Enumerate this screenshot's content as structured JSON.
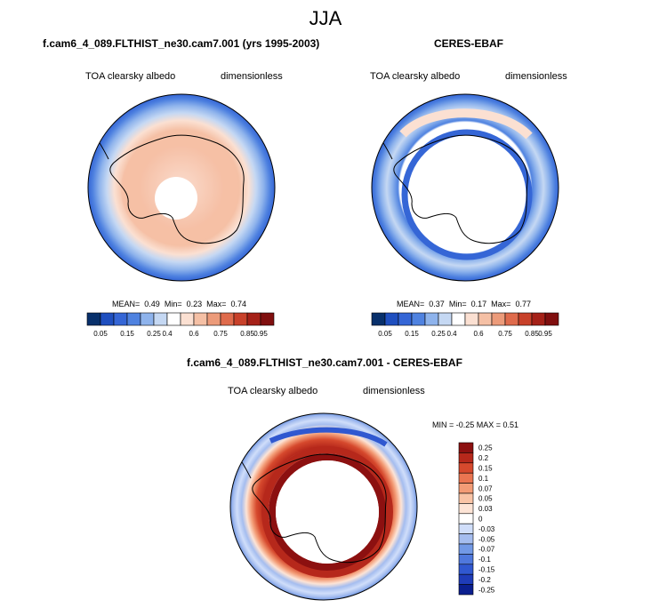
{
  "season": "JJA",
  "panels": [
    {
      "title": "f.cam6_4_089.FLTHIST_ne30.cam7.001 (yrs 1995-2003)",
      "variable_label": "TOA clearsky albedo",
      "units_label": "dimensionless",
      "stats": {
        "mean_label": "MEAN=",
        "mean": "0.49",
        "min_label": "Min=",
        "min": "0.23",
        "max_label": "Max=",
        "max": "0.74"
      }
    },
    {
      "title": "CERES-EBAF",
      "variable_label": "TOA clearsky albedo",
      "units_label": "dimensionless",
      "stats": {
        "mean_label": "MEAN=",
        "mean": "0.37",
        "min_label": "Min=",
        "min": "0.17",
        "max_label": "Max=",
        "max": "0.77"
      }
    },
    {
      "title": "f.cam6_4_089.FLTHIST_ne30.cam7.001 - CERES-EBAF",
      "variable_label": "TOA clearsky albedo",
      "units_label": "dimensionless",
      "stats_text": "MIN = -0.25 MAX = 0.51"
    }
  ],
  "colors": {
    "coastline": "#000000",
    "no_data": "#ffffff",
    "abs_palette": [
      "#08306b",
      "#1f4fbf",
      "#3566d6",
      "#4f82e0",
      "#8eb3ec",
      "#c5d8f3",
      "#ffffff",
      "#fbe0d2",
      "#f5c0a5",
      "#ec9b7a",
      "#df6b4c",
      "#c8412a",
      "#a52118",
      "#800f0f"
    ],
    "diff_palette": [
      "#0b1f8f",
      "#1f3cb8",
      "#3058d0",
      "#4f78dd",
      "#7299e6",
      "#a5bdef",
      "#d0defa",
      "#ffffff",
      "#fde4d6",
      "#f9c4a6",
      "#f39c76",
      "#ea7551",
      "#d6492d",
      "#b6281b",
      "#8c1010"
    ]
  },
  "chart_data": [
    {
      "type": "heatmap",
      "projection": "south-polar-stereographic",
      "title": "f.cam6_4_089.FLTHIST_ne30.cam7.001 (yrs 1995-2003)",
      "colorbar_ticks": [
        "0.05",
        "0.15",
        "0.25",
        "0.4",
        "0.6",
        "0.75",
        "0.85",
        "0.95"
      ],
      "colorbar_orientation": "horizontal",
      "value_range": [
        0.23,
        0.74
      ],
      "mean": 0.49
    },
    {
      "type": "heatmap",
      "projection": "south-polar-stereographic",
      "title": "CERES-EBAF",
      "colorbar_ticks": [
        "0.05",
        "0.15",
        "0.25",
        "0.4",
        "0.6",
        "0.75",
        "0.85",
        "0.95"
      ],
      "colorbar_orientation": "horizontal",
      "value_range": [
        0.17,
        0.77
      ],
      "mean": 0.37
    },
    {
      "type": "heatmap",
      "projection": "south-polar-stereographic",
      "title": "f.cam6_4_089.FLTHIST_ne30.cam7.001 - CERES-EBAF",
      "colorbar_ticks": [
        "0.25",
        "0.2",
        "0.15",
        "0.1",
        "0.07",
        "0.05",
        "0.03",
        "0",
        "-0.03",
        "-0.05",
        "-0.07",
        "-0.1",
        "-0.15",
        "-0.2",
        "-0.25"
      ],
      "colorbar_orientation": "vertical",
      "value_range": [
        -0.25,
        0.51
      ]
    }
  ]
}
